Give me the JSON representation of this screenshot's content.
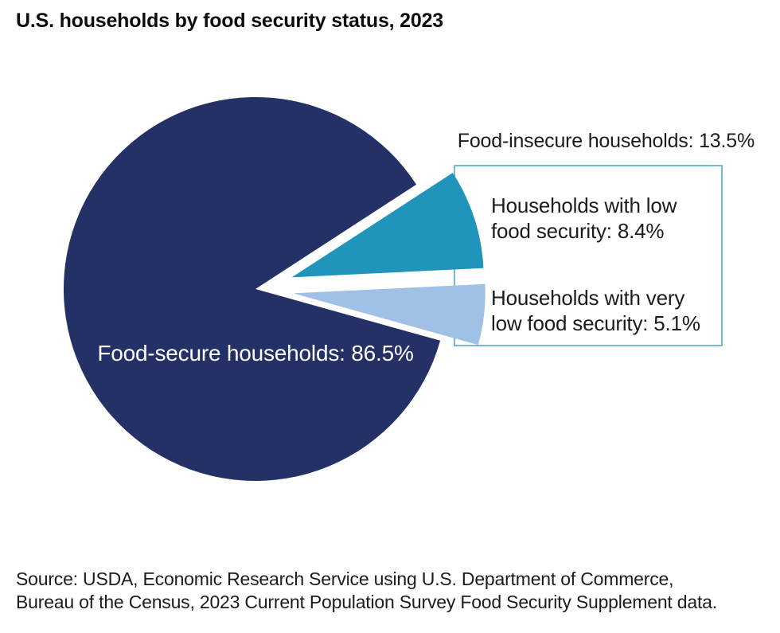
{
  "title": "U.S. households by food security status, 2023",
  "labels": {
    "food_insecure_total": "Food-insecure households: 13.5%",
    "low_lines": [
      "Households with low",
      "food security: 8.4%"
    ],
    "very_low_lines": [
      "Households with very",
      "low food security: 5.1%"
    ],
    "secure": "Food-secure households: 86.5%"
  },
  "source": {
    "lines": [
      "Source: USDA, Economic Research Service using U.S. Department of Commerce,",
      "Bureau of the Census, 2023 Current Population Survey Food Security Supplement data."
    ]
  },
  "colors": {
    "food_secure": "#243166",
    "low_food_security": "#2194bc",
    "very_low_food_security": "#9fc1e5",
    "annotation_box_border": "#4aa1c5",
    "text": "#1c1c1c",
    "pie_label_text": "#ffffff"
  },
  "chart_data": {
    "type": "pie",
    "title": "U.S. households by food security status, 2023",
    "start_angle_deg": 33,
    "direction": "clockwise",
    "slices": [
      {
        "label": "Households with low food security",
        "value": 8.4,
        "color": "#2194bc",
        "exploded": true
      },
      {
        "label": "Households with very low food security",
        "value": 5.1,
        "color": "#9fc1e5",
        "exploded": true
      },
      {
        "label": "Food-secure households",
        "value": 86.5,
        "color": "#243166",
        "exploded": false
      }
    ],
    "groups": [
      {
        "label": "Food-insecure households",
        "value": 13.5
      },
      {
        "label": "Food-secure households",
        "value": 86.5
      }
    ],
    "legend_position": "none",
    "annotation_box": {
      "for": "Food-insecure households"
    }
  }
}
